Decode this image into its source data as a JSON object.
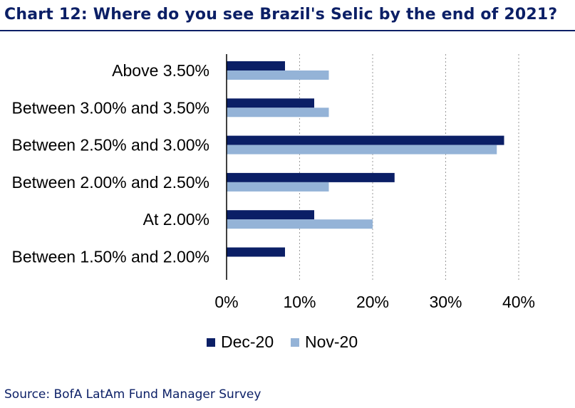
{
  "title": "Chart 12: Where do you see Brazil's Selic by the end of 2021?",
  "source": "Source: BofA LatAm Fund Manager Survey",
  "chart_data": {
    "type": "bar",
    "orientation": "horizontal",
    "title": "Chart 12: Where do you see Brazil's Selic by the end of 2021?",
    "categories": [
      "Above 3.50%",
      "Between 3.00% and 3.50%",
      "Between 2.50% and 3.00%",
      "Between 2.00% and 2.50%",
      "At 2.00%",
      "Between 1.50% and 2.00%"
    ],
    "series": [
      {
        "name": "Dec-20",
        "color": "#0b1f66",
        "values": [
          8,
          12,
          38,
          23,
          12,
          8
        ]
      },
      {
        "name": "Nov-20",
        "color": "#94b3d7",
        "values": [
          14,
          14,
          37,
          14,
          20,
          0
        ]
      }
    ],
    "x_ticks": [
      "0%",
      "10%",
      "20%",
      "30%",
      "40%"
    ],
    "xlim": [
      0,
      40
    ],
    "grid": "vertical dashed",
    "legend": "bottom-center"
  }
}
